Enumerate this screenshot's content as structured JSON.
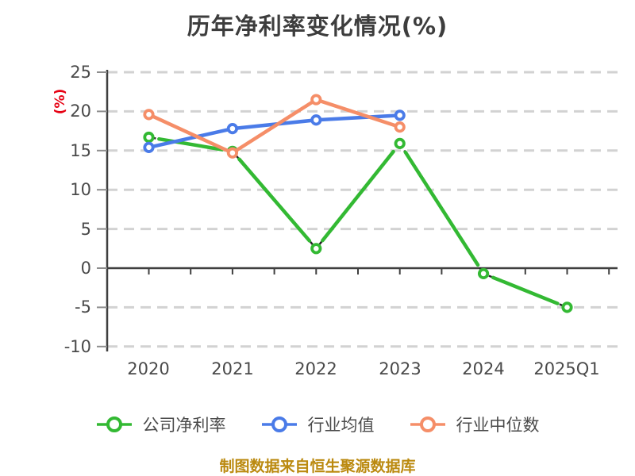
{
  "header": {
    "title": "历年净利率变化情况(%)"
  },
  "chart_data": {
    "type": "line",
    "title": "历年净利率变化情况(%)",
    "ylabel": "(%)",
    "ylabel_color": "#e60012",
    "categories": [
      "2020",
      "2021",
      "2022",
      "2023",
      "2024",
      "2025Q1"
    ],
    "y_ticks": [
      25,
      20,
      15,
      10,
      5,
      0,
      -5,
      -10
    ],
    "ylim": [
      -10,
      25
    ],
    "grid": "horizontal-dashed",
    "gridline_color": "#d2d2d2",
    "axis_color": "#3f3f3f",
    "legend_position": "bottom",
    "series": [
      {
        "name": "公司净利率",
        "color": "#33b933",
        "underline_style": "black-dashed",
        "values": [
          16.7,
          14.9,
          2.5,
          15.9,
          -0.7,
          -5.0
        ]
      },
      {
        "name": "行业均值",
        "color": "#4a7be8",
        "underline_style": "none",
        "values": [
          15.4,
          17.8,
          18.9,
          19.5,
          null,
          null
        ]
      },
      {
        "name": "行业中位数",
        "color": "#f58e68",
        "underline_style": "none",
        "values": [
          19.6,
          14.7,
          21.5,
          18.0,
          null,
          null
        ]
      }
    ]
  },
  "axes": {
    "y_tick_labels": [
      "25",
      "20",
      "15",
      "10",
      "5",
      "0",
      "-5",
      "-10"
    ],
    "x_tick_labels": [
      "2020",
      "2021",
      "2022",
      "2023",
      "2024",
      "2025Q1"
    ],
    "unit_label": "(%)"
  },
  "legend": {
    "items": [
      {
        "label": "公司净利率",
        "color": "#33b933"
      },
      {
        "label": "行业均值",
        "color": "#4a7be8"
      },
      {
        "label": "行业中位数",
        "color": "#f58e68"
      }
    ]
  },
  "footer": {
    "caption": "制图数据来自恒生聚源数据库",
    "color": "#bb8a10"
  }
}
